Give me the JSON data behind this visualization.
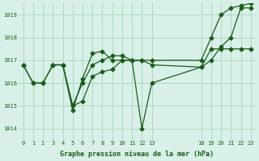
{
  "background_color": "#d8f0e8",
  "grid_color": "#b0d8c0",
  "line_color": "#1a5c1a",
  "marker_color": "#1a5c1a",
  "title": "Graphe pression niveau de la mer (hPa)",
  "x_ticks": [
    0,
    1,
    2,
    3,
    4,
    5,
    6,
    7,
    8,
    9,
    10,
    11,
    12,
    13,
    18,
    19,
    20,
    21,
    22,
    23
  ],
  "x_tick_labels": [
    "0",
    "1",
    "2",
    "3",
    "4",
    "5",
    "6",
    "7",
    "8",
    "9",
    "10",
    "11",
    "12",
    "13",
    "18",
    "19",
    "20",
    "21",
    "22",
    "23"
  ],
  "ylim": [
    1013.5,
    1019.5
  ],
  "xlim": [
    -0.5,
    23.5
  ],
  "y_ticks": [
    1014,
    1015,
    1016,
    1017,
    1018,
    1019
  ],
  "series1": {
    "x": [
      0,
      1,
      2,
      3,
      4,
      5,
      6,
      7,
      8,
      9,
      10,
      11,
      12,
      13,
      18,
      19,
      20,
      21,
      22,
      23
    ],
    "y": [
      1016.8,
      1016.0,
      1016.0,
      1016.8,
      1016.8,
      1015.0,
      1015.2,
      1016.3,
      1016.5,
      1016.6,
      1017.0,
      1017.0,
      1014.0,
      1016.0,
      1016.7,
      1017.0,
      1017.6,
      1018.0,
      1019.3,
      1019.3
    ]
  },
  "series2": {
    "x": [
      3,
      4,
      5,
      6,
      7,
      8,
      9,
      10,
      11,
      12,
      13,
      18,
      19,
      20,
      21,
      22,
      23
    ],
    "y": [
      1016.8,
      1016.8,
      1014.8,
      1016.2,
      1017.3,
      1017.4,
      1017.0,
      1017.0,
      1017.0,
      1017.0,
      1016.8,
      1016.7,
      1017.5,
      1017.5,
      1017.5,
      1017.5,
      1017.5
    ]
  },
  "series3": {
    "x": [
      0,
      1,
      2,
      3,
      4,
      5,
      6,
      7,
      8,
      9,
      10,
      11,
      12,
      13,
      18,
      19,
      20,
      21,
      22,
      23
    ],
    "y": [
      1016.8,
      1016.0,
      1016.0,
      1016.8,
      1016.8,
      1015.0,
      1016.0,
      1016.8,
      1017.0,
      1017.2,
      1017.2,
      1017.0,
      1017.0,
      1017.0,
      1017.0,
      1018.0,
      1019.0,
      1019.3,
      1019.4,
      1019.5
    ]
  }
}
